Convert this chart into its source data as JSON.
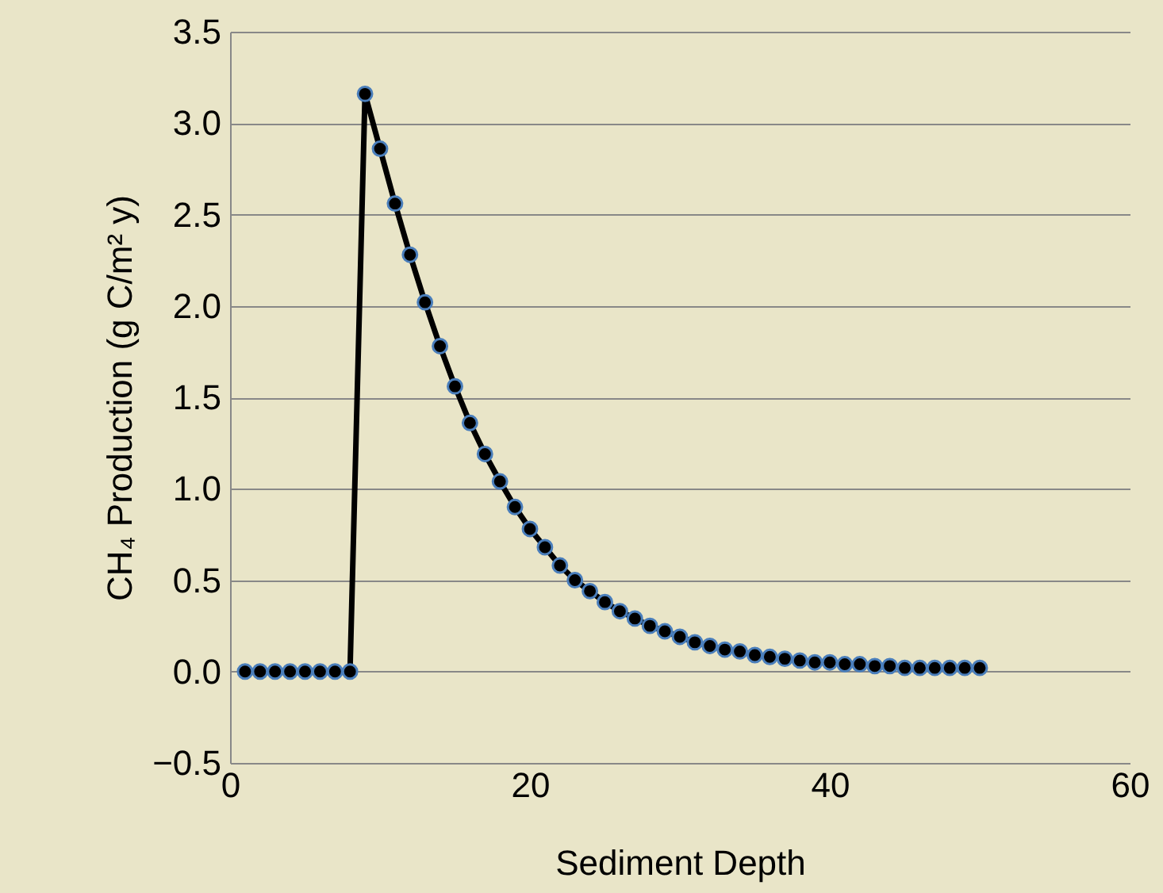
{
  "chart_data": {
    "type": "line",
    "xlabel": "Sediment Depth",
    "ylabel": "CH₄ Production (g C/m² y)",
    "x": [
      1,
      2,
      3,
      4,
      5,
      6,
      7,
      8,
      9,
      10,
      11,
      12,
      13,
      14,
      15,
      16,
      17,
      18,
      19,
      20,
      21,
      22,
      23,
      24,
      25,
      26,
      27,
      28,
      29,
      30,
      31,
      32,
      33,
      34,
      35,
      36,
      37,
      38,
      39,
      40,
      41,
      42,
      43,
      44,
      45,
      46,
      47,
      48,
      49,
      50
    ],
    "series": [
      {
        "color": "#000000",
        "values": [
          0,
          0,
          0,
          0,
          0,
          0,
          0,
          0,
          3.16,
          2.86,
          2.56,
          2.28,
          2.02,
          1.78,
          1.56,
          1.36,
          1.19,
          1.04,
          0.9,
          0.78,
          0.68,
          0.58,
          0.5,
          0.44,
          0.38,
          0.33,
          0.29,
          0.25,
          0.22,
          0.19,
          0.16,
          0.14,
          0.12,
          0.11,
          0.09,
          0.08,
          0.07,
          0.06,
          0.05,
          0.05,
          0.04,
          0.04,
          0.03,
          0.03,
          0.02,
          0.02,
          0.02,
          0.02,
          0.02,
          0.02
        ]
      }
    ],
    "xlim": [
      0,
      60
    ],
    "xticks": [
      0,
      20,
      40,
      60
    ],
    "ylim": [
      -0.5,
      3.5
    ],
    "yticks": [
      -0.5,
      {
        "value": 0,
        "label": "0.0"
      },
      0.5,
      {
        "value": 1,
        "label": "1.0"
      },
      1.5,
      {
        "value": 2,
        "label": "2.0"
      },
      2.5,
      {
        "value": 3,
        "label": "3.0"
      },
      3.5
    ],
    "grid": "y",
    "marker": "circle",
    "line_style": "solid"
  }
}
